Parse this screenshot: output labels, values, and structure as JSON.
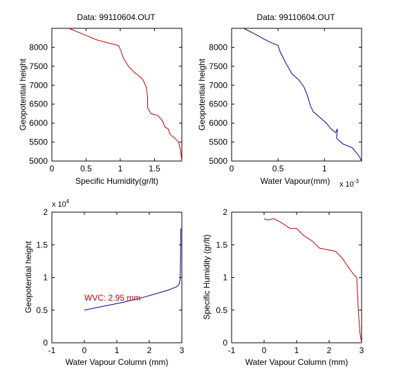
{
  "chart_data": [
    {
      "type": "line",
      "title": "Data: 99110604.OUT",
      "xlabel": "Specific Humidity(gr/lt)",
      "ylabel": "Geopotential height",
      "xlim": [
        0,
        1.9
      ],
      "ylim": [
        5000,
        8500
      ],
      "xticks": [
        0,
        0.5,
        1,
        1.5
      ],
      "xtick_labels": [
        "0",
        "0.5",
        "1",
        "1.5"
      ],
      "yticks": [
        5000,
        5500,
        6000,
        6500,
        7000,
        7500,
        8000
      ],
      "ytick_labels": [
        "5000",
        "5500",
        "6000",
        "6500",
        "7000",
        "7500",
        "8000"
      ],
      "series": [
        {
          "color": "#c00000",
          "x": [
            0.25,
            0.45,
            0.65,
            0.85,
            0.97,
            1.0,
            1.05,
            1.12,
            1.2,
            1.27,
            1.33,
            1.38,
            1.4,
            1.4,
            1.45,
            1.55,
            1.62,
            1.65,
            1.7,
            1.72,
            1.73,
            1.8,
            1.85,
            1.88,
            1.89,
            1.9
          ],
          "y": [
            8500,
            8350,
            8200,
            8100,
            8050,
            7950,
            7700,
            7500,
            7350,
            7250,
            7150,
            6950,
            6700,
            6400,
            6250,
            6200,
            6050,
            5900,
            5850,
            5750,
            5700,
            5600,
            5500,
            5300,
            5150,
            5000
          ]
        }
      ]
    },
    {
      "type": "line",
      "title": "Data: 99110604.OUT",
      "xlabel": "Water Vapour(mm)",
      "ylabel": "Geopotential height",
      "x_multiplier": "x 10-3",
      "xlim": [
        0,
        1.4
      ],
      "ylim": [
        5000,
        8500
      ],
      "xticks": [
        0,
        0.5,
        1
      ],
      "xtick_labels": [
        "0",
        "0.5",
        "1"
      ],
      "yticks": [
        5000,
        5500,
        6000,
        6500,
        7000,
        7500,
        8000
      ],
      "ytick_labels": [
        "5000",
        "5500",
        "6000",
        "6500",
        "7000",
        "7500",
        "8000"
      ],
      "series": [
        {
          "color": "#00008b",
          "x": [
            0.13,
            0.25,
            0.4,
            0.5,
            0.52,
            0.58,
            0.65,
            0.72,
            0.78,
            0.82,
            0.85,
            0.88,
            0.95,
            1.02,
            1.07,
            1.12,
            1.14,
            1.13,
            1.2,
            1.3,
            1.35,
            1.38,
            1.4
          ],
          "y": [
            8500,
            8350,
            8150,
            8050,
            7900,
            7600,
            7300,
            7150,
            6950,
            6700,
            6450,
            6300,
            6150,
            6000,
            5850,
            5750,
            5850,
            5600,
            5450,
            5350,
            5200,
            5100,
            5000
          ]
        }
      ]
    },
    {
      "type": "line",
      "title": "",
      "xlabel": "Water Vapour Column (mm)",
      "ylabel": "Geopotential height",
      "y_multiplier": "x 104",
      "xlim": [
        -1,
        3
      ],
      "ylim": [
        0,
        2
      ],
      "xticks": [
        -1,
        0,
        1,
        2,
        3
      ],
      "xtick_labels": [
        "-1",
        "0",
        "1",
        "2",
        "3"
      ],
      "yticks": [
        0,
        0.5,
        1,
        1.5,
        2
      ],
      "ytick_labels": [
        "0",
        "0.5",
        "1",
        "1.5",
        "2"
      ],
      "annotation": "WVC: 2.95 mm",
      "annotation_color": "#c00000",
      "series": [
        {
          "color": "#00008b",
          "x": [
            0,
            0.3,
            0.7,
            1.2,
            1.7,
            2.2,
            2.6,
            2.85,
            2.92,
            2.95,
            2.96,
            2.97
          ],
          "y": [
            0.5,
            0.53,
            0.57,
            0.62,
            0.68,
            0.75,
            0.81,
            0.86,
            0.9,
            0.98,
            1.3,
            1.75
          ]
        }
      ]
    },
    {
      "type": "line",
      "title": "",
      "xlabel": "Water Vapour Column (mm)",
      "ylabel": "Specific Humidity (gr/lt)",
      "xlim": [
        -1,
        3
      ],
      "ylim": [
        0,
        2
      ],
      "xticks": [
        -1,
        0,
        1,
        2,
        3
      ],
      "xtick_labels": [
        "-1",
        "0",
        "1",
        "2",
        "3"
      ],
      "yticks": [
        0,
        0.5,
        1,
        1.5,
        2
      ],
      "ytick_labels": [
        "0",
        "0.5",
        "1",
        "1.5",
        "2"
      ],
      "series": [
        {
          "color": "#c00000",
          "x": [
            0,
            0.1,
            0.3,
            0.5,
            0.8,
            1.0,
            1.2,
            1.5,
            1.7,
            2.0,
            2.2,
            2.4,
            2.6,
            2.75,
            2.85,
            2.9,
            2.95,
            3.0
          ],
          "y": [
            1.9,
            1.88,
            1.9,
            1.85,
            1.75,
            1.75,
            1.65,
            1.55,
            1.45,
            1.42,
            1.4,
            1.3,
            1.15,
            1.05,
            1.0,
            0.5,
            0.15,
            0
          ]
        }
      ]
    }
  ]
}
